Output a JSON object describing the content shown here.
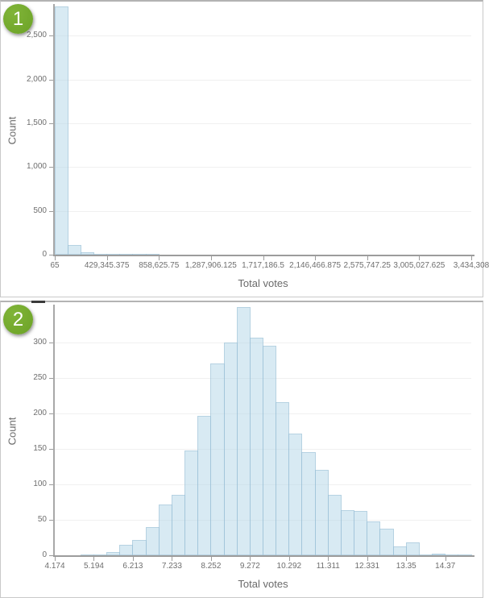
{
  "panels": [
    {
      "badge": "1"
    },
    {
      "badge": "2"
    }
  ],
  "colors": {
    "badge_green": "#74a82c",
    "bar_fill": "#d9eaf3",
    "bar_border": "#b3d3e2",
    "axis_line": "#9c9c9c",
    "gridline": "#f0f0f0",
    "tick_text": "#6e6e6e",
    "axis_title_text": "#6a6a6a",
    "panel_border": "#c9c9c9"
  },
  "chart_data": [
    {
      "type": "bar",
      "subtype": "histogram",
      "title": "",
      "xlabel": "Total votes",
      "ylabel": "Count",
      "bin_start": 65,
      "bin_width": 107320.094,
      "ticks_every_bins": 4,
      "x_tick_labels": [
        "65",
        "429,345.375",
        "858,625.75",
        "1,287,906.125",
        "1,717,186.5",
        "2,146,466.875",
        "2,575,747.25",
        "3,005,027.625",
        "3,434,308"
      ],
      "x_tick_values": [
        65,
        429345.375,
        858625.75,
        1287906.125,
        1717186.5,
        2146466.875,
        2575747.25,
        3005027.625,
        3434308
      ],
      "y_tick_labels": [
        "0",
        "500",
        "1,000",
        "1,500",
        "2,000",
        "2,500"
      ],
      "y_tick_values": [
        0,
        500,
        1000,
        1500,
        2000,
        2500
      ],
      "ylim": [
        0,
        2835
      ],
      "grid": "horizontal-only",
      "legend": "none",
      "values": [
        2835,
        113,
        27,
        12,
        6,
        4,
        3,
        2,
        1,
        1,
        0,
        0,
        0,
        0,
        0,
        0,
        0,
        0,
        0,
        0,
        0,
        0,
        0,
        0,
        0,
        0,
        0,
        0,
        0,
        0,
        0,
        1
      ]
    },
    {
      "type": "bar",
      "subtype": "histogram",
      "title": "",
      "xlabel": "Total votes",
      "ylabel": "Count",
      "bin_start": 4.174,
      "bin_width": 0.3399,
      "ticks_every_bins": 3,
      "x_tick_labels": [
        "4.174",
        "5.194",
        "6.213",
        "7.233",
        "8.252",
        "9.272",
        "10.292",
        "11.311",
        "12.331",
        "13.35",
        "14.37"
      ],
      "x_tick_values": [
        4.174,
        5.194,
        6.213,
        7.233,
        8.252,
        9.272,
        10.292,
        11.311,
        12.331,
        13.35,
        14.37
      ],
      "y_tick_labels": [
        "0",
        "50",
        "100",
        "150",
        "200",
        "250",
        "300"
      ],
      "y_tick_values": [
        0,
        50,
        100,
        150,
        200,
        250,
        300
      ],
      "ylim": [
        0,
        350
      ],
      "grid": "horizontal-only",
      "legend": "none",
      "values": [
        0,
        0,
        1,
        1,
        4,
        15,
        22,
        40,
        72,
        85,
        148,
        197,
        270,
        300,
        350,
        307,
        295,
        216,
        172,
        146,
        121,
        85,
        64,
        62,
        48,
        38,
        12,
        18,
        1,
        2,
        1,
        1
      ]
    }
  ]
}
